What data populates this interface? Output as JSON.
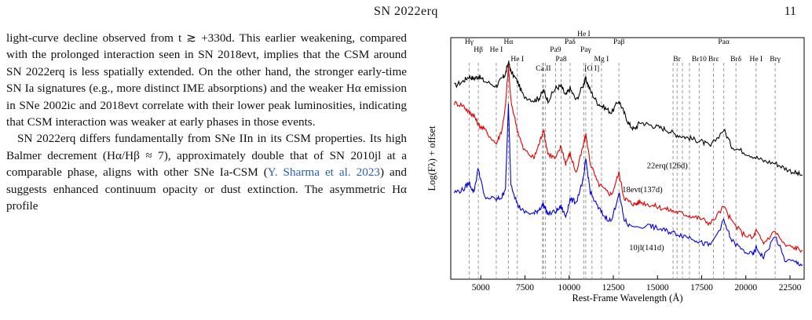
{
  "header": {
    "running_title": "SN 2022erq",
    "page_number": "11"
  },
  "body_paragraphs": [
    {
      "id": "p1",
      "indent": false,
      "text": "light-curve decline observed from t ≳ +330d. This earlier weakening, compared with the prolonged interaction seen in SN 2018evt, implies that the CSM around SN 2022erq is less spatially extended. On the other hand, the stronger early-time SN Ia signatures (e.g., more distinct IME absorptions) and the weaker Hα emission in SNe 2002ic and 2018evt correlate with their lower peak luminosities, indicating that CSM interaction was weaker at early phases in those events."
    },
    {
      "id": "p2",
      "indent": true,
      "text_before": "SN 2022erq differs fundamentally from SNe IIn in its CSM properties. Its high Balmer decrement (Hα/Hβ ≈ 7), approximately double that of SN 2010jl at a comparable phase, aligns with other SNe Ia-CSM (",
      "citation": "Y. Sharma et al. 2023",
      "text_after": ") and suggests enhanced continuum opacity or dust extinction. The asymmetric Hα profile"
    }
  ],
  "chart_data": {
    "type": "line",
    "xlabel": "Rest-Frame Wavelength (Å)",
    "ylabel": "Log(Fλ) + offset",
    "xlim": [
      3300,
      23300
    ],
    "xticks": [
      5000,
      7500,
      10000,
      12500,
      15000,
      17500,
      20000,
      22500
    ],
    "xtick_labels": [
      "5000",
      "7500",
      "10000",
      "12500",
      "15000",
      "17500",
      "20000",
      "22500"
    ],
    "ylim": [
      0,
      100
    ],
    "grid": false,
    "line_ids": [
      {
        "label": "Hγ",
        "x": 4340,
        "row": 0
      },
      {
        "label": "Hβ",
        "x": 4861,
        "row": 1
      },
      {
        "label": "He I",
        "x": 5876,
        "row": 1
      },
      {
        "label": "Hα",
        "x": 6563,
        "row": 0
      },
      {
        "label": "He I",
        "x": 7065,
        "row": 2
      },
      {
        "label": "Ca II",
        "x": 8542,
        "row": 3
      },
      {
        "label": "Pa9",
        "x": 9229,
        "row": 1
      },
      {
        "label": "Pa8",
        "x": 9546,
        "row": 2
      },
      {
        "label": "Paδ",
        "x": 10049,
        "row": 0
      },
      {
        "label": "He I",
        "x": 10830,
        "row": -1
      },
      {
        "label": "Paγ",
        "x": 10938,
        "row": 1
      },
      {
        "label": "[O I]",
        "x": 11290,
        "row": 3
      },
      {
        "label": "Mg I",
        "x": 11828,
        "row": 2
      },
      {
        "label": "Paβ",
        "x": 12818,
        "row": 0
      },
      {
        "label": "Br",
        "x": 16100,
        "row": 2
      },
      {
        "label": "Br10",
        "x": 17360,
        "row": 2
      },
      {
        "label": "Brε",
        "x": 18170,
        "row": 2
      },
      {
        "label": "Paα",
        "x": 18751,
        "row": 0
      },
      {
        "label": "Brδ",
        "x": 19440,
        "row": 2
      },
      {
        "label": "He I",
        "x": 20580,
        "row": 2
      },
      {
        "label": "Brγ",
        "x": 21660,
        "row": 2
      }
    ],
    "dashed_lines_x": [
      4340,
      4861,
      5876,
      6563,
      7065,
      8498,
      8542,
      8662,
      9229,
      9546,
      10049,
      10830,
      10938,
      11290,
      11828,
      12818,
      15880,
      16110,
      16410,
      16810,
      17360,
      18170,
      18751,
      19440,
      20580,
      21660
    ],
    "series": [
      {
        "label_text": "22erq(126d)",
        "color": "#000000",
        "x": [
          3500,
          4000,
          4340,
          4600,
          4861,
          5200,
          5876,
          6200,
          6400,
          6563,
          6700,
          7065,
          7400,
          8000,
          8300,
          8542,
          8800,
          9229,
          9546,
          9800,
          10049,
          10400,
          10830,
          10938,
          11200,
          11600,
          12000,
          12400,
          12818,
          13100,
          13400,
          13700,
          14000,
          14500,
          15000,
          15500,
          16000,
          16500,
          17000,
          17500,
          18000,
          18751,
          19200,
          19800,
          20400,
          21000,
          21660,
          22200,
          22800,
          23200
        ],
        "y": [
          80,
          82,
          84,
          83,
          84,
          82,
          80,
          83,
          85,
          90,
          86,
          82,
          76,
          74,
          75,
          78,
          74,
          79,
          80,
          76,
          79,
          74,
          81,
          83,
          78,
          73,
          71,
          69,
          74,
          69,
          64,
          62,
          65,
          64,
          63,
          62,
          60,
          59,
          58,
          57,
          55,
          62,
          55,
          53,
          51,
          49,
          48,
          46,
          44,
          43
        ]
      },
      {
        "label_text": "18evt(137d)",
        "color": "#e00000",
        "x": [
          3500,
          4000,
          4340,
          4600,
          4861,
          5200,
          5876,
          6200,
          6400,
          6563,
          6700,
          7065,
          7400,
          8000,
          8300,
          8542,
          8800,
          9229,
          9546,
          9800,
          10049,
          10400,
          10830,
          10938,
          11200,
          11600,
          12000,
          12400,
          12818,
          13100,
          13400,
          13700,
          14000,
          14500,
          15000,
          15500,
          16000,
          16500,
          17000,
          17500,
          18000,
          18751,
          19200,
          19800,
          20400,
          20580,
          21000,
          21660,
          22200,
          22800,
          23200
        ],
        "y": [
          73,
          72,
          69,
          68,
          64,
          62,
          56,
          62,
          72,
          88,
          74,
          62,
          54,
          50,
          56,
          62,
          52,
          50,
          55,
          48,
          52,
          44,
          56,
          60,
          48,
          40,
          37,
          35,
          44,
          34,
          32,
          31,
          32,
          31,
          30,
          29,
          28,
          27,
          26,
          25,
          23,
          30,
          24,
          19,
          17,
          20,
          15,
          20,
          14,
          13,
          12
        ]
      },
      {
        "label_text": "10jl(141d)",
        "color": "#0000e0",
        "x": [
          3500,
          4000,
          4340,
          4600,
          4861,
          5200,
          5876,
          6200,
          6400,
          6563,
          6700,
          7065,
          7400,
          8000,
          8300,
          8542,
          8800,
          9229,
          9546,
          9800,
          10049,
          10400,
          10830,
          10938,
          11200,
          11600,
          12000,
          12400,
          12818,
          13100,
          13400,
          14600,
          15000,
          15500,
          16000,
          16500,
          17000,
          17500,
          18000,
          18751,
          19200,
          19800,
          20400,
          20580,
          21000,
          21660,
          22200,
          22800,
          23200
        ],
        "y": [
          36,
          37,
          40,
          36,
          46,
          34,
          33,
          34,
          38,
          72,
          40,
          31,
          28,
          27,
          29,
          31,
          27,
          28,
          30,
          26,
          33,
          32,
          42,
          50,
          36,
          30,
          26,
          24,
          36,
          25,
          22,
          22,
          21,
          20,
          19,
          18,
          17,
          15,
          14,
          24,
          16,
          12,
          10,
          13,
          9,
          18,
          8,
          7,
          6
        ]
      }
    ]
  }
}
